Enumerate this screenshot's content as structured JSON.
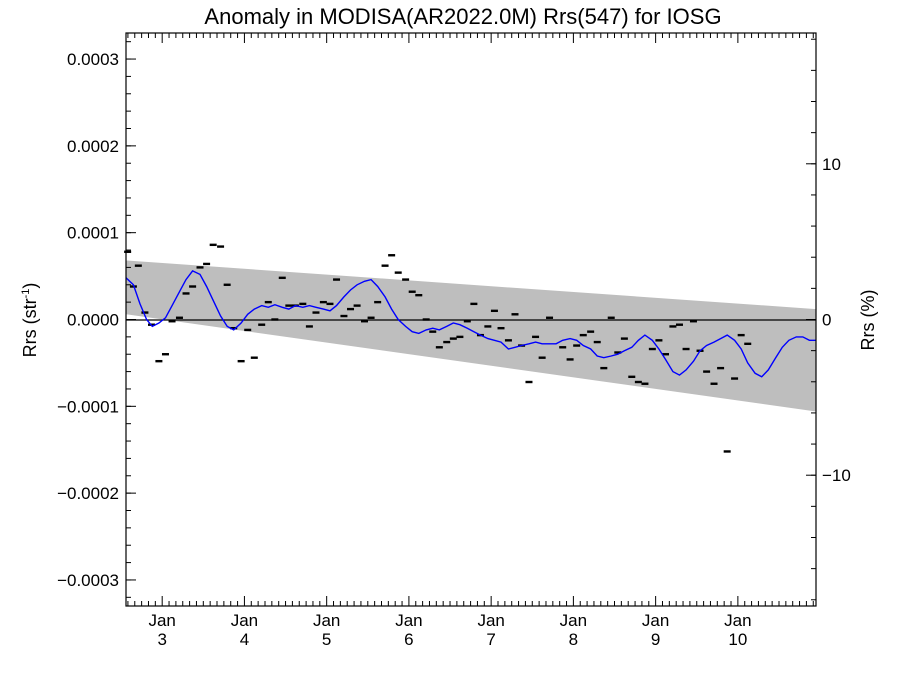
{
  "chart_data": {
    "type": "scatter",
    "title": "Anomaly in MODISA(AR2022.0M) Rrs(547) for IOSG",
    "ylabel": "Rrs (str",
    "ylabel_sup": "-1",
    "ylabel_close": ")",
    "y2label": "Rrs (%)",
    "ylim": [
      -0.00033,
      0.00033
    ],
    "y2lim": [
      -18.4,
      18.4
    ],
    "xlim": [
      2.56,
      10.95
    ],
    "yticks": [
      {
        "value": 0.0003,
        "label": "0.0003"
      },
      {
        "value": 0.0002,
        "label": "0.0002"
      },
      {
        "value": 0.0001,
        "label": "0.0001"
      },
      {
        "value": 0.0,
        "label": "0.0000"
      },
      {
        "value": -0.0001,
        "label": "−0.0001"
      },
      {
        "value": -0.0002,
        "label": "−0.0002"
      },
      {
        "value": -0.0003,
        "label": "−0.0003"
      }
    ],
    "y2ticks": [
      {
        "value": 10,
        "label": "10"
      },
      {
        "value": 0,
        "label": "0"
      },
      {
        "value": -10,
        "label": "−10"
      }
    ],
    "xticks": [
      {
        "value": 3,
        "month": "Jan",
        "year": "3"
      },
      {
        "value": 4,
        "month": "Jan",
        "year": "4"
      },
      {
        "value": 5,
        "month": "Jan",
        "year": "5"
      },
      {
        "value": 6,
        "month": "Jan",
        "year": "6"
      },
      {
        "value": 7,
        "month": "Jan",
        "year": "7"
      },
      {
        "value": 8,
        "month": "Jan",
        "year": "8"
      },
      {
        "value": 9,
        "month": "Jan",
        "year": "9"
      },
      {
        "value": 10,
        "month": "Jan",
        "year": "10"
      }
    ],
    "uncertainty_band": {
      "x": [
        2.56,
        10.95
      ],
      "upper": [
        6.8e-05,
        1.2e-05
      ],
      "lower": [
        6e-06,
        -0.000106
      ],
      "color": "#bebebe"
    },
    "zero_line": 0,
    "series": [
      {
        "kind": "monthly_anomaly",
        "marker": "dash",
        "color": "#000000",
        "points": [
          [
            2.58,
            7.8e-05
          ],
          [
            2.65,
            3.8e-05
          ],
          [
            2.71,
            6.2e-05
          ],
          [
            2.79,
            8e-06
          ],
          [
            2.87,
            -6e-06
          ],
          [
            2.96,
            -4.8e-05
          ],
          [
            3.04,
            -4e-05
          ],
          [
            3.12,
            -2e-06
          ],
          [
            3.21,
            2e-06
          ],
          [
            3.29,
            3e-05
          ],
          [
            3.37,
            3.8e-05
          ],
          [
            3.46,
            6e-05
          ],
          [
            3.54,
            6.4e-05
          ],
          [
            3.62,
            8.6e-05
          ],
          [
            3.71,
            8.4e-05
          ],
          [
            3.79,
            4e-05
          ],
          [
            3.87,
            -1e-05
          ],
          [
            3.96,
            -4.8e-05
          ],
          [
            4.04,
            -1.2e-05
          ],
          [
            4.12,
            -4.4e-05
          ],
          [
            4.21,
            -6e-06
          ],
          [
            4.29,
            2e-05
          ],
          [
            4.37,
            0.0
          ],
          [
            4.46,
            4.8e-05
          ],
          [
            4.54,
            1.6e-05
          ],
          [
            4.62,
            1.6e-05
          ],
          [
            4.71,
            1.8e-05
          ],
          [
            4.79,
            -8e-06
          ],
          [
            4.87,
            8e-06
          ],
          [
            4.96,
            2e-05
          ],
          [
            5.04,
            1.8e-05
          ],
          [
            5.12,
            4.6e-05
          ],
          [
            5.21,
            4e-06
          ],
          [
            5.29,
            1.2e-05
          ],
          [
            5.37,
            1.6e-05
          ],
          [
            5.46,
            -2e-06
          ],
          [
            5.54,
            2e-06
          ],
          [
            5.62,
            2e-05
          ],
          [
            5.71,
            6.2e-05
          ],
          [
            5.79,
            7.4e-05
          ],
          [
            5.87,
            5.4e-05
          ],
          [
            5.96,
            4.6e-05
          ],
          [
            6.04,
            3.2e-05
          ],
          [
            6.12,
            2.8e-05
          ],
          [
            6.21,
            0.0
          ],
          [
            6.29,
            -1.4e-05
          ],
          [
            6.37,
            -3.2e-05
          ],
          [
            6.46,
            -2.6e-05
          ],
          [
            6.54,
            -2.2e-05
          ],
          [
            6.62,
            -2e-05
          ],
          [
            6.71,
            -2e-06
          ],
          [
            6.79,
            1.8e-05
          ],
          [
            6.87,
            -1.8e-05
          ],
          [
            6.96,
            -8e-06
          ],
          [
            7.04,
            1e-05
          ],
          [
            7.12,
            -1e-05
          ],
          [
            7.21,
            -2.4e-05
          ],
          [
            7.29,
            6e-06
          ],
          [
            7.37,
            -3e-05
          ],
          [
            7.46,
            -7.2e-05
          ],
          [
            7.54,
            -2e-05
          ],
          [
            7.62,
            -4.4e-05
          ],
          [
            7.71,
            2e-06
          ],
          [
            7.87,
            -3.2e-05
          ],
          [
            7.96,
            -4.6e-05
          ],
          [
            8.04,
            -3e-05
          ],
          [
            8.12,
            -1.8e-05
          ],
          [
            8.21,
            -1.4e-05
          ],
          [
            8.29,
            -2.6e-05
          ],
          [
            8.37,
            -5.6e-05
          ],
          [
            8.46,
            2e-06
          ],
          [
            8.54,
            -3.8e-05
          ],
          [
            8.62,
            -2.2e-05
          ],
          [
            8.71,
            -6.6e-05
          ],
          [
            8.79,
            -7.2e-05
          ],
          [
            8.87,
            -7.4e-05
          ],
          [
            8.96,
            -3.4e-05
          ],
          [
            9.04,
            -2.4e-05
          ],
          [
            9.12,
            -4e-05
          ],
          [
            9.21,
            -8e-06
          ],
          [
            9.29,
            -6e-06
          ],
          [
            9.37,
            -3.4e-05
          ],
          [
            9.46,
            -2e-06
          ],
          [
            9.54,
            -3.6e-05
          ],
          [
            9.62,
            -6e-05
          ],
          [
            9.71,
            -7.4e-05
          ],
          [
            9.79,
            -5.6e-05
          ],
          [
            9.87,
            -0.000152
          ],
          [
            9.96,
            -6.8e-05
          ],
          [
            10.04,
            -1.8e-05
          ],
          [
            10.12,
            -2.8e-05
          ]
        ]
      },
      {
        "kind": "running_mean",
        "color": "#0000ff",
        "points": [
          [
            2.56,
            4.8e-05
          ],
          [
            2.65,
            4e-05
          ],
          [
            2.73,
            1.8e-05
          ],
          [
            2.81,
            0.0
          ],
          [
            2.88,
            -8e-06
          ],
          [
            2.96,
            -4e-06
          ],
          [
            3.04,
            2e-06
          ],
          [
            3.12,
            1.6e-05
          ],
          [
            3.21,
            3.2e-05
          ],
          [
            3.29,
            4.6e-05
          ],
          [
            3.37,
            5.6e-05
          ],
          [
            3.46,
            5.2e-05
          ],
          [
            3.54,
            3.8e-05
          ],
          [
            3.62,
            2.2e-05
          ],
          [
            3.71,
            4e-06
          ],
          [
            3.79,
            -8e-06
          ],
          [
            3.87,
            -1.2e-05
          ],
          [
            3.96,
            -4e-06
          ],
          [
            4.04,
            6e-06
          ],
          [
            4.12,
            1.2e-05
          ],
          [
            4.21,
            1.6e-05
          ],
          [
            4.29,
            1.4e-05
          ],
          [
            4.37,
            1.7e-05
          ],
          [
            4.46,
            1.4e-05
          ],
          [
            4.54,
            1.2e-05
          ],
          [
            4.62,
            1.6e-05
          ],
          [
            4.71,
            1.4e-05
          ],
          [
            4.79,
            1.6e-05
          ],
          [
            4.87,
            1.4e-05
          ],
          [
            4.96,
            1.2e-05
          ],
          [
            5.04,
            1e-05
          ],
          [
            5.12,
            1.6e-05
          ],
          [
            5.21,
            2.6e-05
          ],
          [
            5.29,
            3.4e-05
          ],
          [
            5.37,
            4e-05
          ],
          [
            5.46,
            4.4e-05
          ],
          [
            5.54,
            4.6e-05
          ],
          [
            5.62,
            3.8e-05
          ],
          [
            5.71,
            2.6e-05
          ],
          [
            5.79,
            1.2e-05
          ],
          [
            5.87,
            0.0
          ],
          [
            5.96,
            -8e-06
          ],
          [
            6.04,
            -1.4e-05
          ],
          [
            6.12,
            -1.6e-05
          ],
          [
            6.21,
            -1.2e-05
          ],
          [
            6.29,
            -1e-05
          ],
          [
            6.37,
            -1.2e-05
          ],
          [
            6.46,
            -8e-06
          ],
          [
            6.54,
            -4e-06
          ],
          [
            6.62,
            -6e-06
          ],
          [
            6.71,
            -1e-05
          ],
          [
            6.79,
            -1.4e-05
          ],
          [
            6.87,
            -1.8e-05
          ],
          [
            6.96,
            -2.2e-05
          ],
          [
            7.04,
            -2.4e-05
          ],
          [
            7.12,
            -2.6e-05
          ],
          [
            7.21,
            -3.4e-05
          ],
          [
            7.29,
            -3.2e-05
          ],
          [
            7.37,
            -3e-05
          ],
          [
            7.46,
            -2.8e-05
          ],
          [
            7.54,
            -2.6e-05
          ],
          [
            7.62,
            -2.8e-05
          ],
          [
            7.71,
            -2.8e-05
          ],
          [
            7.79,
            -2.8e-05
          ],
          [
            7.87,
            -2.4e-05
          ],
          [
            7.96,
            -2.2e-05
          ],
          [
            8.04,
            -2.4e-05
          ],
          [
            8.12,
            -3e-05
          ],
          [
            8.21,
            -3.4e-05
          ],
          [
            8.29,
            -4.2e-05
          ],
          [
            8.37,
            -4.4e-05
          ],
          [
            8.46,
            -4.2e-05
          ],
          [
            8.54,
            -4e-05
          ],
          [
            8.62,
            -3.6e-05
          ],
          [
            8.71,
            -3.2e-05
          ],
          [
            8.79,
            -2.4e-05
          ],
          [
            8.87,
            -1.8e-05
          ],
          [
            8.96,
            -2.4e-05
          ],
          [
            9.04,
            -3.4e-05
          ],
          [
            9.12,
            -4.6e-05
          ],
          [
            9.21,
            -6e-05
          ],
          [
            9.29,
            -6.4e-05
          ],
          [
            9.37,
            -5.8e-05
          ],
          [
            9.46,
            -4.8e-05
          ],
          [
            9.54,
            -3.6e-05
          ],
          [
            9.62,
            -3e-05
          ],
          [
            9.71,
            -2.6e-05
          ],
          [
            9.79,
            -2.2e-05
          ],
          [
            9.87,
            -1.8e-05
          ],
          [
            9.96,
            -2.4e-05
          ],
          [
            10.04,
            -3.4e-05
          ],
          [
            10.12,
            -5e-05
          ],
          [
            10.21,
            -6.2e-05
          ],
          [
            10.29,
            -6.6e-05
          ],
          [
            10.37,
            -5.8e-05
          ],
          [
            10.46,
            -4.4e-05
          ],
          [
            10.54,
            -3.2e-05
          ],
          [
            10.62,
            -2.4e-05
          ],
          [
            10.71,
            -2e-05
          ],
          [
            10.79,
            -2e-05
          ],
          [
            10.87,
            -2.4e-05
          ],
          [
            10.95,
            -2.4e-05
          ]
        ]
      }
    ]
  }
}
